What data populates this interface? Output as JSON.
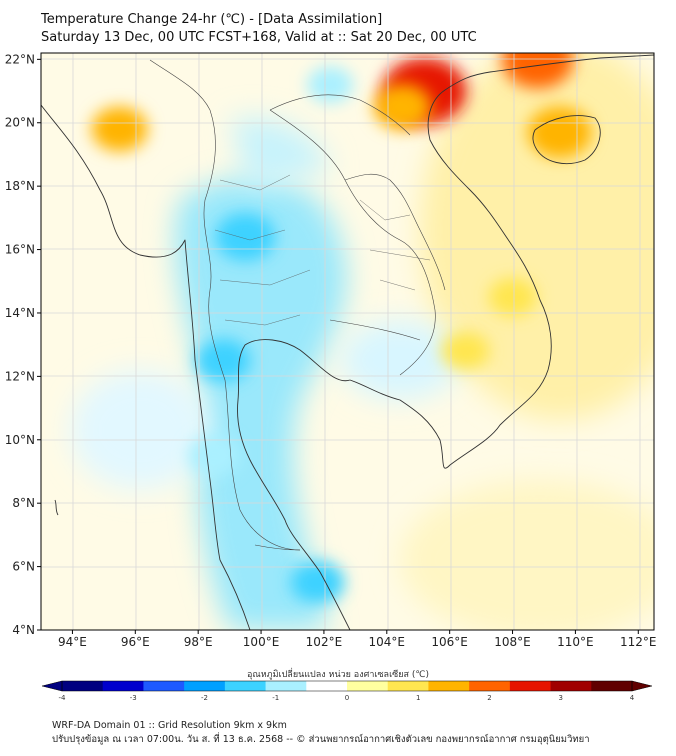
{
  "header": {
    "title": "Temperature Change 24-hr (℃) - [Data Assimilation]",
    "subtitle": "Saturday 13 Dec, 00 UTC FCST+168, Valid at :: Sat 20 Dec, 00 UTC"
  },
  "map": {
    "lat_labels": [
      "22°N",
      "20°N",
      "18°N",
      "16°N",
      "14°N",
      "12°N",
      "10°N",
      "8°N",
      "6°N",
      "4°N"
    ],
    "lon_labels": [
      "94°E",
      "96°E",
      "98°E",
      "100°E",
      "102°E",
      "104°E",
      "106°E",
      "108°E",
      "110°E",
      "112°E"
    ],
    "lat_range": [
      4,
      22.2
    ],
    "lon_range": [
      93,
      112.5
    ],
    "hotspots": [
      {
        "lon": 105.2,
        "lat": 21.0,
        "delta": 2.8
      },
      {
        "lon": 109.5,
        "lat": 19.7,
        "delta": 1.8
      },
      {
        "lon": 108.8,
        "lat": 22.0,
        "delta": 2.2
      },
      {
        "lon": 95.5,
        "lat": 19.8,
        "delta": 1.4
      },
      {
        "lon": 104.5,
        "lat": 20.5,
        "delta": 1.5
      },
      {
        "lon": 108.0,
        "lat": 14.5,
        "delta": 1.0
      },
      {
        "lon": 106.5,
        "lat": 12.8,
        "delta": 1.0
      },
      {
        "lon": 99.5,
        "lat": 16.4,
        "delta": -1.6
      },
      {
        "lon": 98.8,
        "lat": 12.5,
        "delta": -1.3
      },
      {
        "lon": 98.5,
        "lat": 9.5,
        "delta": -1.2
      },
      {
        "lon": 101.8,
        "lat": 5.5,
        "delta": -1.3
      },
      {
        "lon": 102.2,
        "lat": 21.2,
        "delta": -0.9
      }
    ]
  },
  "colorbar": {
    "label": "อุณหภูมิเปลี่ยนแปลง หน่วย องศาเซลเซียส (℃)",
    "min": -4,
    "max": 4,
    "ticks": [
      "-4",
      "-3",
      "-2",
      "-1",
      "0",
      "1",
      "2",
      "3",
      "4"
    ],
    "colors": [
      "#000080",
      "#0000cd",
      "#1e5aff",
      "#00a0ff",
      "#3cd2ff",
      "#aaf0ff",
      "#ffffff",
      "#ffffa0",
      "#ffe650",
      "#ffb400",
      "#ff6400",
      "#e61400",
      "#a00000",
      "#600000"
    ]
  },
  "footer": {
    "line1": "WRF-DA Domain 01 :: Grid Resolution 9km x 9km",
    "line2": "ปรับปรุงข้อมูล ณ เวลา 07:00น. วัน ส. ที่ 13 ธ.ค. 2568 -- © ส่วนพยากรณ์อากาศเชิงตัวเลข กองพยากรณ์อากาศ กรมอุตุนิยมวิทยา"
  }
}
